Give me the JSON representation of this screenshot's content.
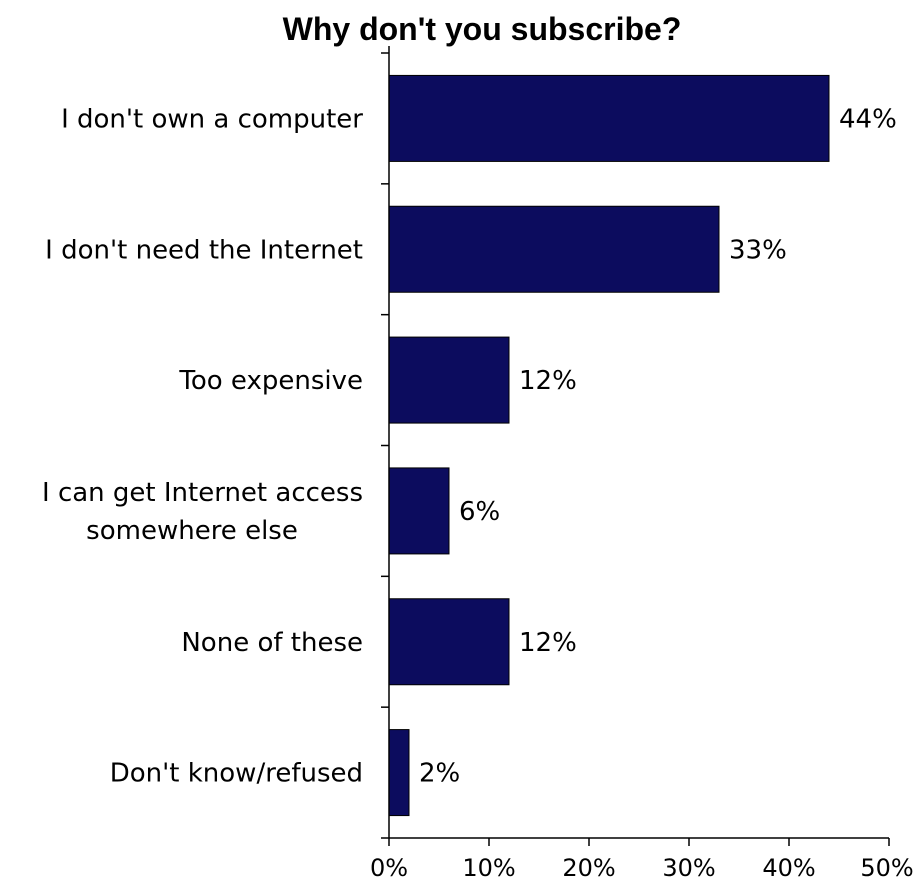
{
  "chart_data": {
    "type": "bar",
    "orientation": "horizontal",
    "title": "Why don't you subscribe?",
    "xlabel": "",
    "ylabel": "",
    "categories": [
      [
        "I don't own a computer"
      ],
      [
        "I don't need the Internet"
      ],
      [
        "Too expensive"
      ],
      [
        "I can get Internet access",
        "somewhere else"
      ],
      [
        "None of these"
      ],
      [
        "Don't know/refused"
      ]
    ],
    "values": [
      44,
      33,
      12,
      6,
      12,
      2
    ],
    "value_labels": [
      "44%",
      "33%",
      "12%",
      "6%",
      "12%",
      "2%"
    ],
    "xlim": [
      0,
      50
    ],
    "x_ticks": [
      0,
      10,
      20,
      30,
      40,
      50
    ],
    "x_tick_labels": [
      "0%",
      "10%",
      "20%",
      "30%",
      "40%",
      "50%"
    ],
    "bar_color": "#0c0c5e",
    "grid": false,
    "legend": "none"
  }
}
